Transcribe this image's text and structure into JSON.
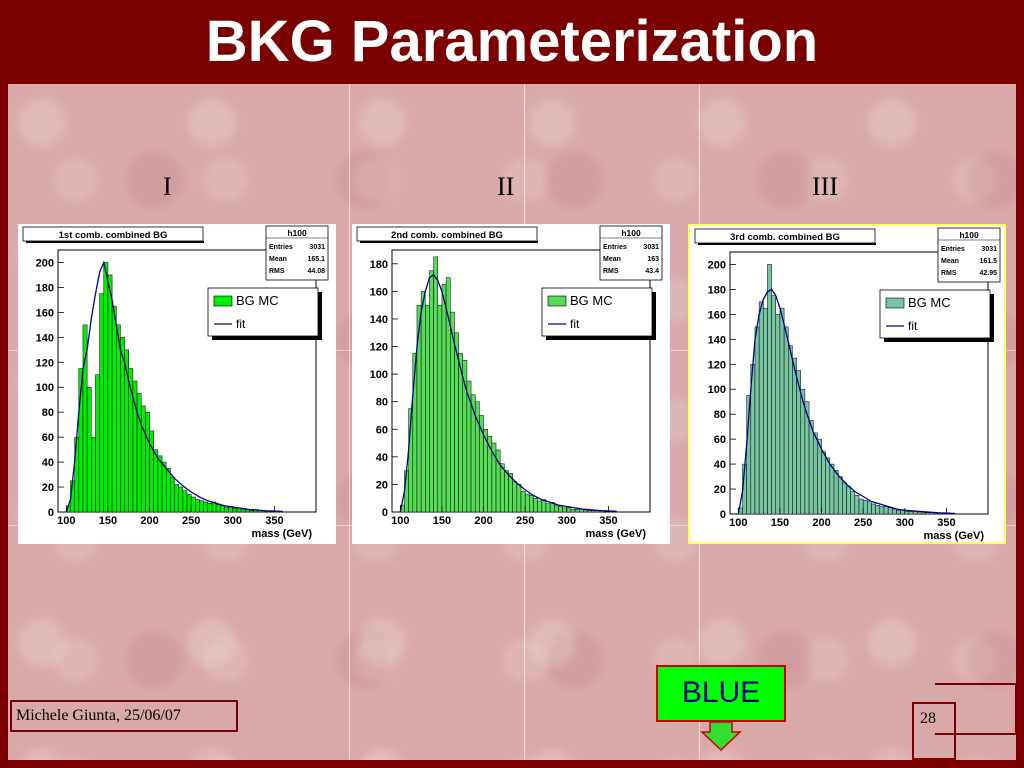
{
  "slide": {
    "title": "BKG Parameterization",
    "author": "Michele Giunta, 25/06/07",
    "page": "28",
    "button": "BLUE",
    "labels": [
      "I",
      "II",
      "III"
    ]
  },
  "chart_data": [
    {
      "type": "bar",
      "title": "1st comb. combined BG",
      "stats": {
        "name": "h100",
        "entries_label": "Entries",
        "entries": "3031",
        "mean_label": "Mean",
        "mean": "165.1",
        "rms_label": "RMS",
        "rms": "44.08"
      },
      "legend": {
        "hist": "BG MC",
        "fit": "fit"
      },
      "xlabel": "mass (GeV)",
      "xlim": [
        90,
        400
      ],
      "ylim": [
        0,
        210
      ],
      "xticks": [
        100,
        150,
        200,
        250,
        300,
        350
      ],
      "yticks": [
        0,
        20,
        40,
        60,
        80,
        100,
        120,
        140,
        160,
        180,
        200
      ],
      "fill_color": "#00ee00",
      "fit_color": "#00008b",
      "bin_start": 100,
      "bin_width": 5,
      "values": [
        5,
        25,
        60,
        115,
        150,
        100,
        60,
        110,
        175,
        200,
        190,
        165,
        150,
        140,
        130,
        115,
        105,
        95,
        85,
        80,
        65,
        50,
        45,
        40,
        35,
        28,
        22,
        20,
        17,
        14,
        12,
        10,
        9,
        8,
        7,
        8,
        6,
        5,
        4,
        4,
        3,
        3,
        2,
        2,
        1,
        2,
        1,
        1,
        1,
        0,
        1,
        0,
        0
      ],
      "fit": [
        [
          100,
          0
        ],
        [
          105,
          10
        ],
        [
          110,
          40
        ],
        [
          115,
          80
        ],
        [
          120,
          115
        ],
        [
          125,
          130
        ],
        [
          130,
          155
        ],
        [
          135,
          175
        ],
        [
          140,
          192
        ],
        [
          145,
          200
        ],
        [
          150,
          185
        ],
        [
          155,
          170
        ],
        [
          160,
          150
        ],
        [
          165,
          130
        ],
        [
          170,
          120
        ],
        [
          175,
          105
        ],
        [
          180,
          92
        ],
        [
          185,
          80
        ],
        [
          190,
          70
        ],
        [
          200,
          55
        ],
        [
          210,
          43
        ],
        [
          220,
          35
        ],
        [
          230,
          27
        ],
        [
          240,
          21
        ],
        [
          250,
          16
        ],
        [
          260,
          12
        ],
        [
          270,
          9
        ],
        [
          280,
          7
        ],
        [
          290,
          5
        ],
        [
          300,
          4
        ],
        [
          320,
          2
        ],
        [
          340,
          1
        ],
        [
          360,
          0.5
        ]
      ]
    },
    {
      "type": "bar",
      "title": "2nd comb. combined BG",
      "stats": {
        "name": "h100",
        "entries_label": "Entries",
        "entries": "3031",
        "mean_label": "Mean",
        "mean": "163",
        "rms_label": "RMS",
        "rms": "43.4"
      },
      "legend": {
        "hist": "BG MC",
        "fit": "fit"
      },
      "xlabel": "mass (GeV)",
      "xlim": [
        90,
        400
      ],
      "ylim": [
        0,
        190
      ],
      "xticks": [
        100,
        150,
        200,
        250,
        300,
        350
      ],
      "yticks": [
        0,
        20,
        40,
        60,
        80,
        100,
        120,
        140,
        160,
        180
      ],
      "fill_color": "#55dd55",
      "fit_color": "#00008b",
      "bin_start": 100,
      "bin_width": 5,
      "values": [
        5,
        30,
        75,
        115,
        150,
        160,
        150,
        175,
        185,
        150,
        165,
        170,
        145,
        130,
        115,
        110,
        95,
        85,
        80,
        70,
        60,
        55,
        50,
        45,
        35,
        30,
        28,
        22,
        20,
        15,
        13,
        12,
        10,
        8,
        9,
        6,
        7,
        5,
        4,
        3,
        3,
        2,
        2,
        2,
        1,
        1,
        1,
        0,
        1,
        0,
        0,
        0,
        0
      ],
      "fit": [
        [
          100,
          0
        ],
        [
          105,
          15
        ],
        [
          110,
          45
        ],
        [
          115,
          85
        ],
        [
          120,
          120
        ],
        [
          125,
          145
        ],
        [
          130,
          160
        ],
        [
          135,
          170
        ],
        [
          140,
          172
        ],
        [
          145,
          168
        ],
        [
          150,
          160
        ],
        [
          155,
          148
        ],
        [
          160,
          135
        ],
        [
          165,
          122
        ],
        [
          170,
          110
        ],
        [
          175,
          98
        ],
        [
          180,
          87
        ],
        [
          190,
          70
        ],
        [
          200,
          56
        ],
        [
          210,
          44
        ],
        [
          220,
          34
        ],
        [
          230,
          27
        ],
        [
          240,
          21
        ],
        [
          250,
          16
        ],
        [
          260,
          12
        ],
        [
          270,
          9
        ],
        [
          280,
          7
        ],
        [
          290,
          5
        ],
        [
          300,
          4
        ],
        [
          320,
          2
        ],
        [
          340,
          1
        ],
        [
          360,
          0.5
        ]
      ]
    },
    {
      "type": "bar",
      "title": "3rd comb. combined  BG",
      "stats": {
        "name": "h100",
        "entries_label": "Entries",
        "entries": "3031",
        "mean_label": "Mean",
        "mean": "161.5",
        "rms_label": "RMS",
        "rms": "42.95"
      },
      "legend": {
        "hist": "BG MC",
        "fit": "fit"
      },
      "xlabel": "mass (GeV)",
      "xlim": [
        90,
        400
      ],
      "ylim": [
        0,
        210
      ],
      "xticks": [
        100,
        150,
        200,
        250,
        300,
        350
      ],
      "yticks": [
        0,
        20,
        40,
        60,
        80,
        100,
        120,
        140,
        160,
        180,
        200
      ],
      "fill_color": "#77c4a0",
      "fit_color": "#00008b",
      "bin_start": 100,
      "bin_width": 5,
      "values": [
        5,
        40,
        95,
        120,
        150,
        170,
        165,
        200,
        175,
        160,
        165,
        150,
        135,
        125,
        115,
        100,
        90,
        75,
        65,
        60,
        50,
        45,
        40,
        35,
        30,
        25,
        22,
        18,
        15,
        12,
        11,
        10,
        8,
        7,
        6,
        6,
        5,
        4,
        3,
        3,
        2,
        2,
        2,
        1,
        1,
        1,
        1,
        0,
        1,
        0,
        0,
        0,
        0
      ],
      "fit": [
        [
          100,
          0
        ],
        [
          105,
          18
        ],
        [
          110,
          55
        ],
        [
          115,
          100
        ],
        [
          120,
          140
        ],
        [
          125,
          160
        ],
        [
          130,
          172
        ],
        [
          135,
          178
        ],
        [
          140,
          180
        ],
        [
          145,
          175
        ],
        [
          150,
          165
        ],
        [
          155,
          152
        ],
        [
          160,
          138
        ],
        [
          165,
          124
        ],
        [
          170,
          110
        ],
        [
          175,
          97
        ],
        [
          180,
          85
        ],
        [
          190,
          66
        ],
        [
          200,
          52
        ],
        [
          210,
          40
        ],
        [
          220,
          31
        ],
        [
          230,
          24
        ],
        [
          240,
          18
        ],
        [
          250,
          14
        ],
        [
          260,
          10
        ],
        [
          270,
          8
        ],
        [
          280,
          6
        ],
        [
          290,
          4
        ],
        [
          300,
          3
        ],
        [
          320,
          2
        ],
        [
          340,
          1
        ],
        [
          360,
          0.5
        ]
      ]
    }
  ]
}
